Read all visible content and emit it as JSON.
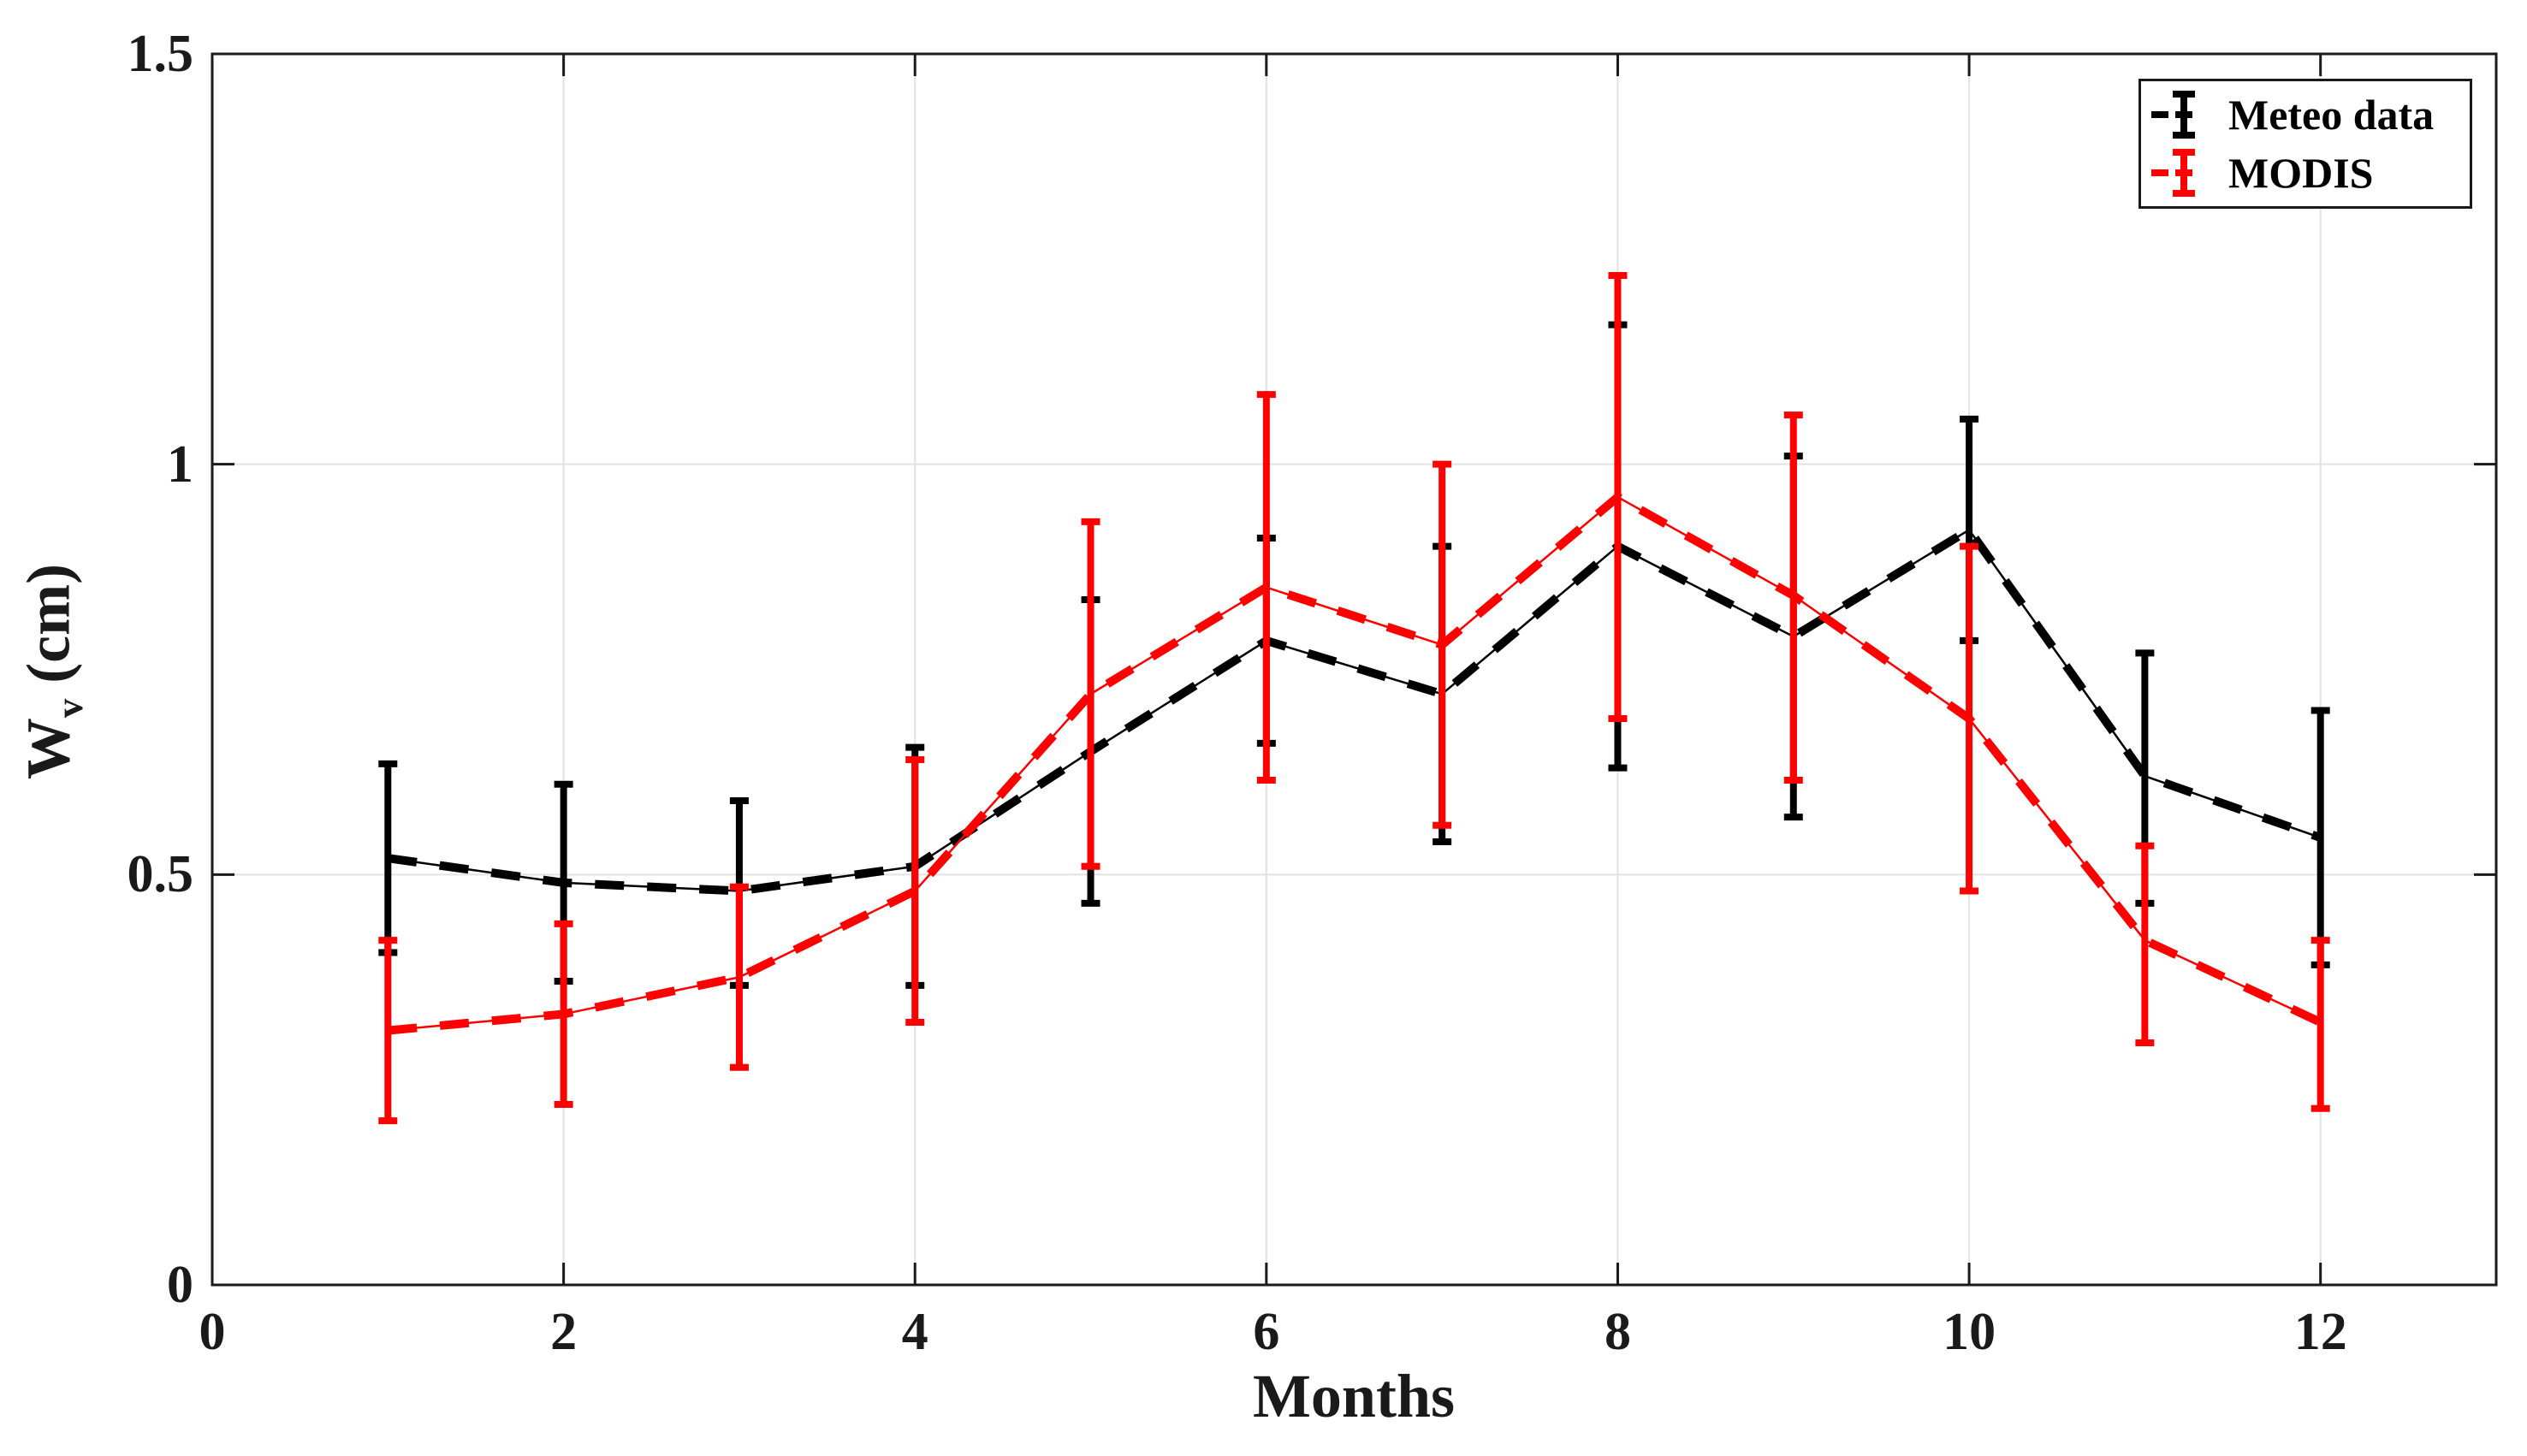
{
  "chart_data": {
    "type": "line",
    "title": "",
    "xlabel": "Months",
    "ylabel": "Wv (cm)",
    "ylabel_parts": {
      "main": "W",
      "sub": "v",
      "rest": " (cm)"
    },
    "xlim": [
      0,
      13
    ],
    "ylim": [
      0,
      1.5
    ],
    "xticks": [
      0,
      2,
      4,
      6,
      8,
      10,
      12
    ],
    "xtick_labels": [
      "0",
      "2",
      "4",
      "6",
      "8",
      "10",
      "12"
    ],
    "yticks": [
      0,
      0.5,
      1,
      1.5
    ],
    "ytick_labels": [
      "0",
      "0.5",
      "1",
      "1.5"
    ],
    "grid": true,
    "legend_position": "top-right",
    "x": [
      1,
      2,
      3,
      4,
      5,
      6,
      7,
      8,
      9,
      10,
      11,
      12
    ],
    "series": [
      {
        "name": "Meteo data",
        "color": "#000000",
        "linestyle": "dashed",
        "values": [
          0.52,
          0.49,
          0.48,
          0.51,
          0.65,
          0.785,
          0.72,
          0.9,
          0.79,
          0.92,
          0.62,
          0.545
        ],
        "err_lower": [
          0.405,
          0.37,
          0.365,
          0.365,
          0.465,
          0.66,
          0.54,
          0.63,
          0.57,
          0.785,
          0.465,
          0.39
        ],
        "err_upper": [
          0.635,
          0.61,
          0.59,
          0.655,
          0.835,
          0.91,
          0.9,
          1.17,
          1.01,
          1.055,
          0.77,
          0.7
        ]
      },
      {
        "name": "MODIS",
        "color": "#ff0000",
        "linestyle": "dashed",
        "values": [
          0.31,
          0.33,
          0.375,
          0.48,
          0.72,
          0.85,
          0.78,
          0.96,
          0.84,
          0.69,
          0.42,
          0.32
        ],
        "err_lower": [
          0.2,
          0.22,
          0.265,
          0.32,
          0.51,
          0.615,
          0.56,
          0.69,
          0.615,
          0.48,
          0.295,
          0.215
        ],
        "err_upper": [
          0.42,
          0.44,
          0.485,
          0.64,
          0.93,
          1.085,
          1.0,
          1.23,
          1.06,
          0.9,
          0.535,
          0.42
        ]
      }
    ]
  },
  "legend": {
    "items": [
      {
        "label": "Meteo data",
        "color": "#000000"
      },
      {
        "label": "MODIS",
        "color": "#ff0000"
      }
    ]
  },
  "colors": {
    "background": "#ffffff",
    "axis": "#1a1a1a",
    "grid": "#e2e2e2",
    "tick_text": "#1a1a1a",
    "series_meteo": "#000000",
    "series_modis": "#ff0000"
  }
}
